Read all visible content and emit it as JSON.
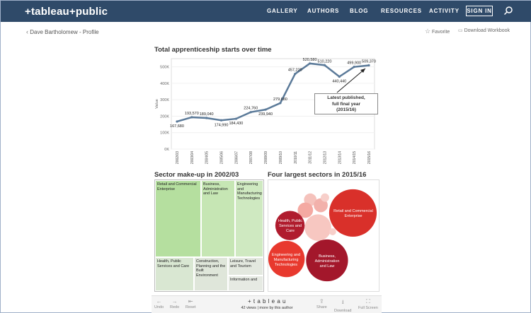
{
  "header": {
    "logo": "+tableau+public",
    "nav": [
      "GALLERY",
      "AUTHORS",
      "BLOG",
      "RESOURCES",
      "ACTIVITY"
    ],
    "sign_in": "SIGN IN"
  },
  "toolbar": {
    "back_label": "Dave Bartholomew - Profile",
    "favorite": "Favorite",
    "download_workbook": "Download Workbook"
  },
  "viz": {
    "line_title": "Total apprenticeship starts over time",
    "treemap_title": "Sector make-up in 2002/03",
    "bubble_title": "Four largest sectors in 2015/16",
    "annotation": [
      "Latest published,",
      "full final year",
      "(2015/16)"
    ]
  },
  "chart_data": {
    "type": "line",
    "ylabel": "Value",
    "ylim": [
      0,
      550000
    ],
    "yticks": [
      "0K",
      "100K",
      "200K",
      "300K",
      "400K",
      "500K"
    ],
    "x": [
      "2002/03",
      "2003/04",
      "2004/05",
      "2005/06",
      "2006/07",
      "2007/08",
      "2008/09",
      "2009/10",
      "2010/11",
      "2011/12",
      "2012/13",
      "2013/14",
      "2014/15",
      "2015/16"
    ],
    "values": [
      167680,
      193570,
      189040,
      174990,
      184430,
      224760,
      239940,
      279680,
      457220,
      520580,
      510220,
      440440,
      499900,
      509370
    ],
    "labels": [
      "167,680",
      "193,570",
      "189,040",
      "174,990",
      "184,430",
      "224,760",
      "239,940",
      "279,680",
      "457,220",
      "520,580",
      "510,220",
      "440,440",
      "499,900",
      "509,370"
    ],
    "color": "#5b7a99"
  },
  "treemap": [
    {
      "label": "Retail and Commercial Enterprise",
      "color": "#b5df9f"
    },
    {
      "label": "Business, Administration and Law",
      "color": "#c6e6b4"
    },
    {
      "label": "Engineering and Manufacturing Technologies",
      "color": "#cfe9c1"
    },
    {
      "label": "Health, Public Services and Care",
      "color": "#d9e7d2"
    },
    {
      "label": "Construction, Planning and the Built Environment",
      "color": "#dfe6da"
    },
    {
      "label": "Leisure, Travel and Tourism",
      "color": "#e3e8df"
    },
    {
      "label": "Information and",
      "color": "#e6eae3"
    }
  ],
  "bubbles": [
    {
      "label": "Retail and Commercial Enterprise",
      "color": "#d9302a"
    },
    {
      "label": "Health, Public Services and Care",
      "color": "#b01c2e"
    },
    {
      "label": "Engineering and Manufacturing Technologies",
      "color": "#e8392e"
    },
    {
      "label": "Business, Administration and Law",
      "color": "#a3172b"
    },
    {
      "label": "",
      "color": "#f2b1ab"
    }
  ],
  "footer": {
    "undo": "Undo",
    "redo": "Redo",
    "reset": "Reset",
    "brand": "+ t a b l e a u",
    "views": "42 views",
    "more": "| more by this author",
    "share": "Share",
    "download": "Download",
    "full_screen": "Full Screen"
  }
}
